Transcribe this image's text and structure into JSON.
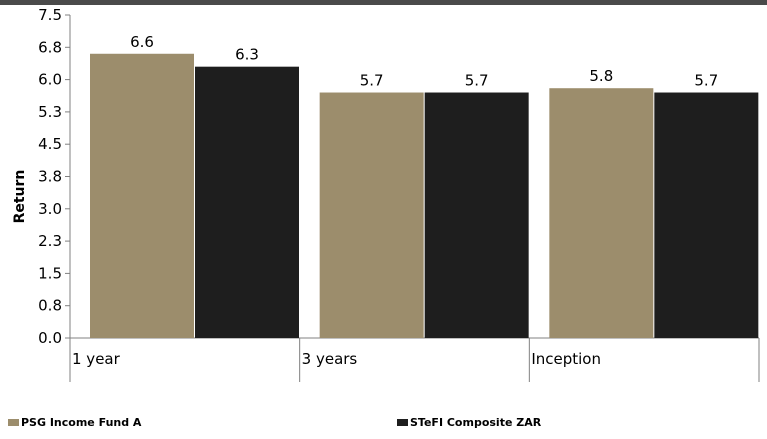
{
  "chart_data": {
    "type": "bar",
    "title": "",
    "xlabel": "",
    "ylabel": "Return",
    "categories": [
      "1 year",
      "3 years",
      "Inception"
    ],
    "ylim": [
      0,
      7.5
    ],
    "yticks": [
      "0.0",
      "0.8",
      "1.5",
      "2.3",
      "3.0",
      "3.8",
      "4.5",
      "5.3",
      "6.0",
      "6.8",
      "7.5"
    ],
    "grid": false,
    "legend_position": "bottom",
    "series": [
      {
        "name": "PSG Income Fund A",
        "values": [
          6.6,
          5.7,
          5.8
        ],
        "labels": [
          "6.6",
          "5.7",
          "5.8"
        ],
        "color": "#9c8d6c"
      },
      {
        "name": "STeFI Composite ZAR",
        "values": [
          6.3,
          5.7,
          5.7
        ],
        "labels": [
          "6.3",
          "5.7",
          "5.7"
        ],
        "color": "#1e1e1e"
      }
    ]
  }
}
